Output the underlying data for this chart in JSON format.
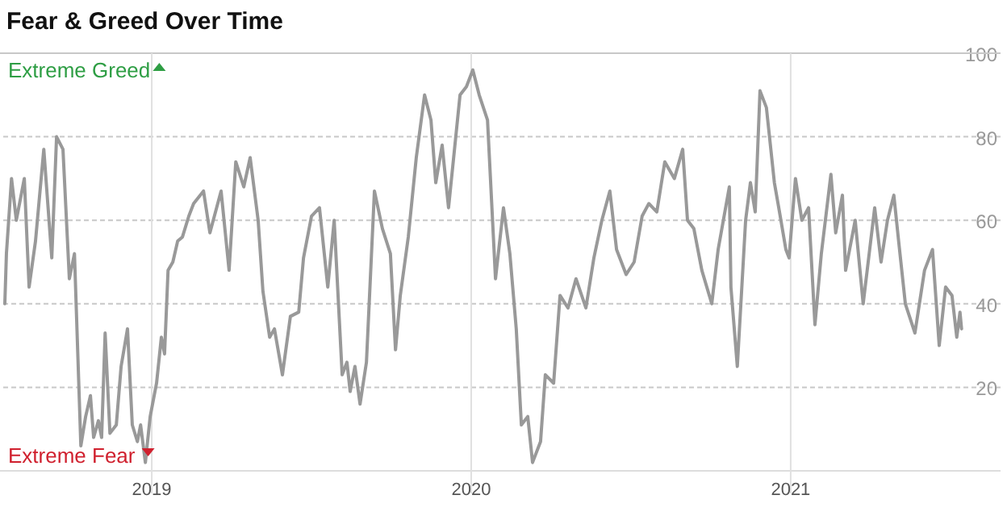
{
  "chart_data": {
    "type": "line",
    "title": "Fear & Greed Over Time",
    "x": [
      2018.54,
      2018.545,
      2018.561,
      2018.576,
      2018.601,
      2018.616,
      2018.636,
      2018.662,
      2018.687,
      2018.702,
      2018.722,
      2018.742,
      2018.758,
      2018.778,
      2018.793,
      2018.808,
      2018.818,
      2018.833,
      2018.843,
      2018.854,
      2018.869,
      2018.889,
      2018.904,
      2018.924,
      2018.939,
      2018.955,
      2018.965,
      2018.98,
      2018.995,
      2019.015,
      2019.03,
      2019.04,
      2019.051,
      2019.066,
      2019.081,
      2019.096,
      2019.116,
      2019.131,
      2019.162,
      2019.182,
      2019.217,
      2019.242,
      2019.263,
      2019.288,
      2019.308,
      2019.333,
      2019.348,
      2019.369,
      2019.384,
      2019.409,
      2019.434,
      2019.46,
      2019.475,
      2019.5,
      2019.525,
      2019.551,
      2019.571,
      2019.596,
      2019.611,
      2019.621,
      2019.636,
      2019.652,
      2019.672,
      2019.697,
      2019.722,
      2019.747,
      2019.763,
      2019.778,
      2019.803,
      2019.828,
      2019.854,
      2019.874,
      2019.889,
      2019.909,
      2019.929,
      2019.965,
      2019.985,
      2020.005,
      2020.025,
      2020.051,
      2020.076,
      2020.101,
      2020.121,
      2020.141,
      2020.157,
      2020.177,
      2020.192,
      2020.217,
      2020.232,
      2020.258,
      2020.278,
      2020.303,
      2020.328,
      2020.359,
      2020.384,
      2020.409,
      2020.434,
      2020.455,
      2020.485,
      2020.51,
      2020.535,
      2020.556,
      2020.581,
      2020.606,
      2020.636,
      2020.662,
      2020.677,
      2020.697,
      2020.722,
      2020.753,
      2020.773,
      2020.808,
      2020.813,
      2020.833,
      2020.859,
      2020.874,
      2020.889,
      2020.904,
      2020.924,
      2020.949,
      2020.965,
      2020.985,
      2020.995,
      2021.015,
      2021.035,
      2021.056,
      2021.076,
      2021.096,
      2021.126,
      2021.141,
      2021.162,
      2021.172,
      2021.202,
      2021.227,
      2021.263,
      2021.283,
      2021.303,
      2021.323,
      2021.338,
      2021.359,
      2021.389,
      2021.419,
      2021.444,
      2021.465,
      2021.485,
      2021.505,
      2021.52,
      2021.53,
      2021.535
    ],
    "series": [
      {
        "color": "#999999",
        "values": [
          40,
          52,
          70,
          60,
          70,
          44,
          55,
          77,
          51,
          80,
          77,
          46,
          52,
          6,
          13,
          18,
          8,
          12,
          8,
          33,
          9,
          11,
          25,
          34,
          11,
          7,
          11,
          2,
          13,
          21,
          32,
          28,
          48,
          50,
          55,
          56,
          61,
          64,
          67,
          57,
          67,
          48,
          74,
          68,
          75,
          60,
          43,
          32,
          34,
          23,
          37,
          38,
          51,
          61,
          63,
          44,
          60,
          23,
          26,
          19,
          25,
          16,
          26,
          67,
          58,
          52,
          29,
          42,
          56,
          75,
          90,
          84,
          69,
          78,
          63,
          90,
          92,
          96,
          90,
          84,
          46,
          63,
          52,
          34,
          11,
          13,
          2,
          7,
          23,
          21,
          42,
          39,
          46,
          39,
          51,
          60,
          67,
          53,
          47,
          50,
          61,
          64,
          62,
          74,
          70,
          77,
          60,
          58,
          48,
          40,
          53,
          68,
          44,
          25,
          60,
          69,
          62,
          91,
          87,
          69,
          62,
          53,
          51,
          70,
          60,
          63,
          35,
          52,
          71,
          57,
          66,
          48,
          60,
          40,
          63,
          50,
          60,
          66,
          55,
          40,
          33,
          48,
          53,
          30,
          44,
          42,
          32,
          38,
          34
        ]
      }
    ],
    "xlim": [
      2018.535,
      2021.657
    ],
    "xticks": [
      2019,
      2020,
      2021
    ],
    "ylim": [
      0,
      100
    ],
    "yticks": [
      20,
      40,
      60,
      80,
      100
    ],
    "grid": true,
    "line_style": "solid",
    "annotations": [
      "Extreme Greed",
      "Extreme Fear"
    ]
  }
}
